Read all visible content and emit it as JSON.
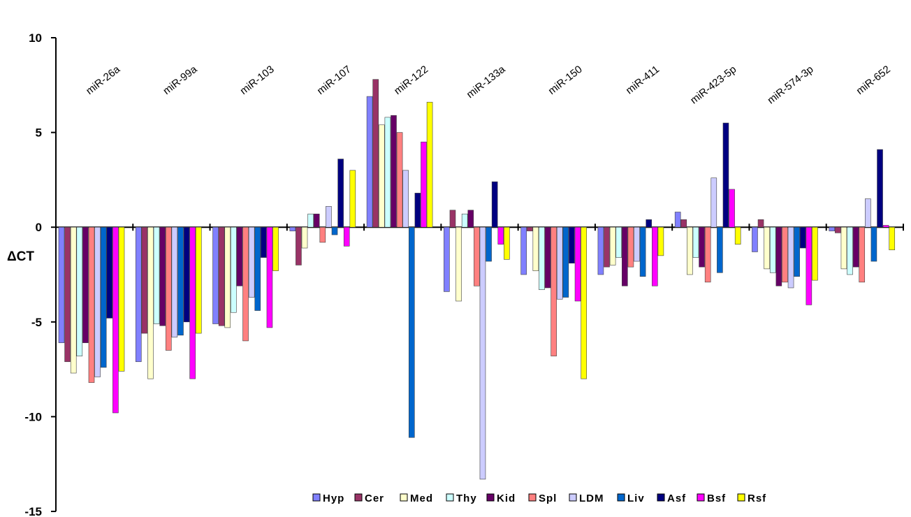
{
  "chart_data": {
    "type": "bar",
    "title": "",
    "xlabel": "",
    "ylabel": "ΔCT",
    "ylim": [
      -15,
      10
    ],
    "y_ticks": [
      10,
      5,
      0,
      -5,
      -10,
      -15
    ],
    "grid": false,
    "legend_position": "bottom-right",
    "categories": [
      "miR-26a",
      "miR-99a",
      "miR-103",
      "miR-107",
      "miR-122",
      "miR-133a",
      "miR-150",
      "miR-411",
      "miR-423-5p",
      "miR-574-3p",
      "miR-652"
    ],
    "series": [
      {
        "name": "Hyp",
        "color": "#8080ff",
        "values": [
          -6.1,
          -7.1,
          -5.1,
          -0.2,
          6.9,
          -3.4,
          -2.5,
          -2.5,
          0.8,
          -1.3,
          -0.2
        ]
      },
      {
        "name": "Cer",
        "color": "#993366",
        "values": [
          -7.1,
          -5.6,
          -5.2,
          -2.0,
          7.8,
          0.9,
          -0.2,
          -2.1,
          0.4,
          0.4,
          -0.3
        ]
      },
      {
        "name": "Med",
        "color": "#ffffcc",
        "values": [
          -7.7,
          -8.0,
          -5.3,
          -1.1,
          5.4,
          -3.9,
          -2.3,
          -2.0,
          -2.5,
          -2.2,
          -2.2
        ]
      },
      {
        "name": "Thy",
        "color": "#ccffff",
        "values": [
          -6.8,
          -5.1,
          -4.5,
          0.7,
          5.8,
          0.7,
          -3.3,
          -1.6,
          -1.6,
          -2.4,
          -2.5
        ]
      },
      {
        "name": "Kid",
        "color": "#660066",
        "values": [
          -6.1,
          -5.2,
          -3.1,
          0.7,
          5.9,
          0.9,
          -3.2,
          -3.1,
          -2.1,
          -3.1,
          -2.1
        ]
      },
      {
        "name": "Spl",
        "color": "#ff8080",
        "values": [
          -8.2,
          -6.5,
          -6.0,
          -0.8,
          5.0,
          -3.1,
          -6.8,
          -2.1,
          -2.9,
          -2.9,
          -2.9
        ]
      },
      {
        "name": "LDM",
        "color": "#ccccff",
        "values": [
          -7.9,
          -5.8,
          -3.7,
          1.1,
          3.0,
          -13.3,
          -3.8,
          -1.8,
          2.6,
          -3.2,
          1.5
        ]
      },
      {
        "name": "Liv",
        "color": "#0066cc",
        "values": [
          -7.4,
          -5.7,
          -4.4,
          -0.4,
          -11.1,
          -1.8,
          -3.7,
          -2.6,
          -2.4,
          -2.6,
          -1.8
        ]
      },
      {
        "name": "Asf",
        "color": "#000080",
        "values": [
          -4.8,
          -5.0,
          -1.6,
          3.6,
          1.8,
          2.4,
          -1.9,
          0.4,
          5.5,
          -1.1,
          4.1
        ]
      },
      {
        "name": "Bsf",
        "color": "#ff00ff",
        "values": [
          -9.8,
          -8.0,
          -5.3,
          -1.0,
          4.5,
          -0.9,
          -3.9,
          -3.1,
          2.0,
          -4.1,
          0.1
        ]
      },
      {
        "name": "Rsf",
        "color": "#ffff00",
        "values": [
          -7.6,
          -5.6,
          -2.3,
          3.0,
          6.6,
          -1.7,
          -8.0,
          -1.5,
          -0.9,
          -2.8,
          -1.2
        ]
      }
    ]
  }
}
